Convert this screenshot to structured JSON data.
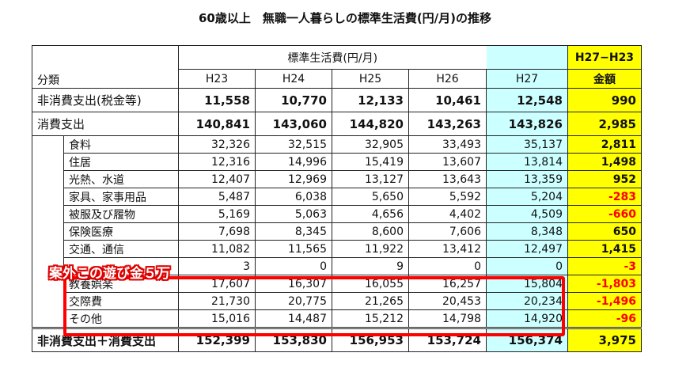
{
  "title": "60歳以上　無職一人暮らしの標準生活費(円/月)の推移",
  "table": {
    "group_header": "標準生活費(円/月)",
    "diff_header": "H27−H23",
    "label_header": "分類",
    "years": [
      "H23",
      "H24",
      "H25",
      "H26",
      "H27"
    ],
    "diff_label": "金額",
    "rows": [
      {
        "label": "非消費支出(税金等)",
        "values": [
          "11,558",
          "10,770",
          "12,133",
          "10,461",
          "12,548"
        ],
        "diff": "990"
      },
      {
        "label": "消費支出",
        "values": [
          "140,841",
          "143,060",
          "144,820",
          "143,263",
          "143,826"
        ],
        "diff": "2,985",
        "children": [
          {
            "label": "食料",
            "values": [
              "32,326",
              "32,515",
              "32,905",
              "33,493",
              "35,137"
            ],
            "diff": "2,811"
          },
          {
            "label": "住居",
            "values": [
              "12,316",
              "14,996",
              "15,419",
              "13,607",
              "13,814"
            ],
            "diff": "1,498"
          },
          {
            "label": "光熱、水道",
            "values": [
              "12,407",
              "12,969",
              "13,127",
              "13,643",
              "13,359"
            ],
            "diff": "952"
          },
          {
            "label": "家具、家事用品",
            "values": [
              "5,487",
              "6,038",
              "5,650",
              "5,592",
              "5,204"
            ],
            "diff": "-283"
          },
          {
            "label": "被服及び履物",
            "values": [
              "5,169",
              "5,063",
              "4,656",
              "4,402",
              "4,509"
            ],
            "diff": "-660"
          },
          {
            "label": "保険医療",
            "values": [
              "7,698",
              "8,345",
              "8,600",
              "7,606",
              "8,348"
            ],
            "diff": "650"
          },
          {
            "label": "交通、通信",
            "values": [
              "11,082",
              "11,565",
              "11,922",
              "13,412",
              "12,497"
            ],
            "diff": "1,415"
          },
          {
            "values": [
              "3",
              "0",
              "9",
              "0",
              "0"
            ],
            "diff": "-3"
          },
          {
            "label": "教養娯楽",
            "values": [
              "17,607",
              "16,307",
              "16,055",
              "16,257",
              "15,804"
            ],
            "diff": "-1,803"
          },
          {
            "label": "交際費",
            "values": [
              "21,730",
              "20,775",
              "21,265",
              "20,453",
              "20,234"
            ],
            "diff": "-1,496"
          },
          {
            "label": "その他",
            "values": [
              "15,016",
              "14,487",
              "15,212",
              "14,798",
              "14,920"
            ],
            "diff": "-96"
          }
        ]
      },
      {
        "label": "非消費支出＋消費支出",
        "values": [
          "152,399",
          "153,830",
          "156,953",
          "153,724",
          "156,374"
        ],
        "diff": "3,975",
        "total": true
      }
    ]
  },
  "annotation": "案外この遊び金５万"
}
